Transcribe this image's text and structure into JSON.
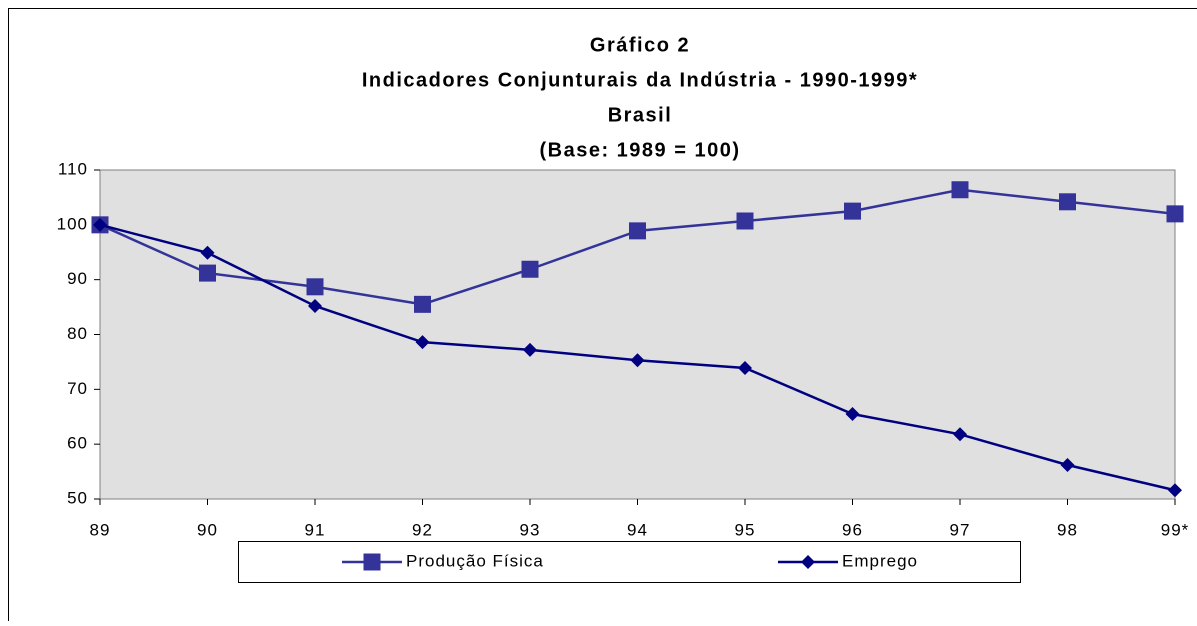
{
  "chart_data": {
    "type": "line",
    "title": [
      "Gráfico 2",
      "Indicadores Conjunturais da Indústria - 1990-1999*",
      "Brasil",
      "(Base: 1989 = 100)"
    ],
    "categories": [
      "89",
      "90",
      "91",
      "92",
      "93",
      "94",
      "95",
      "96",
      "97",
      "98",
      "99*"
    ],
    "series": [
      {
        "name": "Produção Física",
        "color": "#333399",
        "marker": "square",
        "values": [
          100,
          91.2,
          88.7,
          85.5,
          91.9,
          98.9,
          100.7,
          102.5,
          106.4,
          104.2,
          102
        ]
      },
      {
        "name": "Emprego",
        "color": "#000080",
        "marker": "diamond",
        "values": [
          100,
          94.9,
          85.2,
          78.6,
          77.2,
          75.3,
          73.9,
          65.5,
          61.8,
          56.2,
          51.6
        ]
      }
    ],
    "ylim": [
      50,
      110
    ],
    "yticks": [
      50,
      60,
      70,
      80,
      90,
      100,
      110
    ],
    "legend": "bottom"
  }
}
